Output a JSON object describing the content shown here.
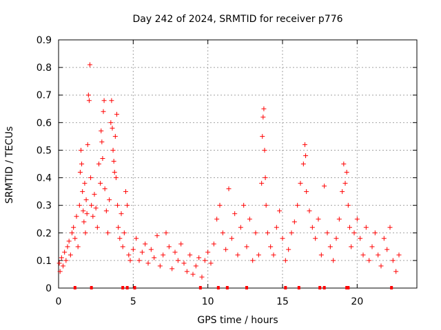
{
  "chart_data": {
    "type": "scatter",
    "title": "Day 242 of 2024, SRMTID for receiver p776",
    "xlabel": "GPS time / hours",
    "ylabel": "SRMTID / TECUs",
    "xlim": [
      0,
      24
    ],
    "ylim": [
      0,
      0.9
    ],
    "xticks": [
      0,
      5,
      10,
      15,
      20
    ],
    "xtick_labels": [
      "0",
      "5",
      "10",
      "15",
      "20"
    ],
    "yticks": [
      0,
      0.1,
      0.2,
      0.3,
      0.4,
      0.5,
      0.6,
      0.7,
      0.8,
      0.9
    ],
    "ytick_labels": [
      "0",
      "0.1",
      "0.2",
      "0.3",
      "0.4",
      "0.5",
      "0.6",
      "0.7",
      "0.8",
      "0.9"
    ],
    "grid": true,
    "marker": "+",
    "color": "#ff0000",
    "series": [
      {
        "name": "SRMTID",
        "points": [
          [
            0.05,
            0.09
          ],
          [
            0.1,
            0.06
          ],
          [
            0.2,
            0.11
          ],
          [
            0.3,
            0.08
          ],
          [
            0.4,
            0.13
          ],
          [
            0.5,
            0.1
          ],
          [
            0.6,
            0.15
          ],
          [
            0.7,
            0.17
          ],
          [
            0.8,
            0.12
          ],
          [
            0.9,
            0.2
          ],
          [
            1.0,
            0.22
          ],
          [
            1.1,
            0.18
          ],
          [
            1.2,
            0.26
          ],
          [
            1.3,
            0.15
          ],
          [
            1.4,
            0.3
          ],
          [
            1.45,
            0.42
          ],
          [
            1.5,
            0.5
          ],
          [
            1.55,
            0.45
          ],
          [
            1.6,
            0.35
          ],
          [
            1.65,
            0.28
          ],
          [
            1.7,
            0.24
          ],
          [
            1.75,
            0.38
          ],
          [
            1.8,
            0.2
          ],
          [
            1.85,
            0.32
          ],
          [
            1.9,
            0.27
          ],
          [
            1.95,
            0.52
          ],
          [
            2.0,
            0.7
          ],
          [
            2.05,
            0.68
          ],
          [
            2.1,
            0.81
          ],
          [
            2.15,
            0.4
          ],
          [
            2.2,
            0.3
          ],
          [
            2.3,
            0.26
          ],
          [
            2.4,
            0.34
          ],
          [
            2.5,
            0.29
          ],
          [
            2.6,
            0.22
          ],
          [
            2.7,
            0.45
          ],
          [
            2.8,
            0.38
          ],
          [
            2.85,
            0.57
          ],
          [
            2.9,
            0.53
          ],
          [
            2.95,
            0.47
          ],
          [
            3.0,
            0.64
          ],
          [
            3.05,
            0.68
          ],
          [
            3.1,
            0.36
          ],
          [
            3.2,
            0.28
          ],
          [
            3.3,
            0.2
          ],
          [
            3.4,
            0.32
          ],
          [
            3.5,
            0.6
          ],
          [
            3.55,
            0.68
          ],
          [
            3.6,
            0.58
          ],
          [
            3.65,
            0.5
          ],
          [
            3.7,
            0.46
          ],
          [
            3.75,
            0.42
          ],
          [
            3.8,
            0.55
          ],
          [
            3.85,
            0.4
          ],
          [
            3.9,
            0.63
          ],
          [
            3.95,
            0.3
          ],
          [
            4.0,
            0.22
          ],
          [
            4.1,
            0.18
          ],
          [
            4.2,
            0.27
          ],
          [
            4.3,
            0.15
          ],
          [
            4.4,
            0.2
          ],
          [
            4.5,
            0.35
          ],
          [
            4.6,
            0.3
          ],
          [
            4.7,
            0.12
          ],
          [
            4.8,
            0.1
          ],
          [
            5.0,
            0.14
          ],
          [
            5.2,
            0.18
          ],
          [
            5.4,
            0.1
          ],
          [
            5.6,
            0.13
          ],
          [
            5.8,
            0.16
          ],
          [
            6.0,
            0.09
          ],
          [
            6.2,
            0.14
          ],
          [
            6.4,
            0.11
          ],
          [
            6.6,
            0.19
          ],
          [
            6.8,
            0.08
          ],
          [
            7.0,
            0.12
          ],
          [
            7.2,
            0.2
          ],
          [
            7.4,
            0.15
          ],
          [
            7.6,
            0.07
          ],
          [
            7.8,
            0.13
          ],
          [
            8.0,
            0.1
          ],
          [
            8.2,
            0.16
          ],
          [
            8.4,
            0.09
          ],
          [
            8.6,
            0.06
          ],
          [
            8.8,
            0.12
          ],
          [
            9.0,
            0.05
          ],
          [
            9.2,
            0.08
          ],
          [
            9.4,
            0.11
          ],
          [
            9.6,
            0.04
          ],
          [
            9.8,
            0.1
          ],
          [
            10.0,
            0.13
          ],
          [
            10.2,
            0.09
          ],
          [
            10.4,
            0.16
          ],
          [
            10.6,
            0.25
          ],
          [
            10.8,
            0.3
          ],
          [
            11.0,
            0.2
          ],
          [
            11.2,
            0.14
          ],
          [
            11.4,
            0.36
          ],
          [
            11.6,
            0.18
          ],
          [
            11.8,
            0.27
          ],
          [
            12.0,
            0.12
          ],
          [
            12.2,
            0.22
          ],
          [
            12.4,
            0.3
          ],
          [
            12.6,
            0.15
          ],
          [
            12.8,
            0.25
          ],
          [
            13.0,
            0.1
          ],
          [
            13.2,
            0.2
          ],
          [
            13.4,
            0.12
          ],
          [
            13.6,
            0.38
          ],
          [
            13.65,
            0.55
          ],
          [
            13.7,
            0.62
          ],
          [
            13.75,
            0.65
          ],
          [
            13.8,
            0.5
          ],
          [
            13.85,
            0.4
          ],
          [
            13.9,
            0.3
          ],
          [
            14.0,
            0.2
          ],
          [
            14.2,
            0.15
          ],
          [
            14.4,
            0.12
          ],
          [
            14.6,
            0.22
          ],
          [
            14.8,
            0.28
          ],
          [
            15.0,
            0.18
          ],
          [
            15.2,
            0.1
          ],
          [
            15.4,
            0.14
          ],
          [
            15.6,
            0.2
          ],
          [
            15.8,
            0.24
          ],
          [
            16.0,
            0.3
          ],
          [
            16.2,
            0.38
          ],
          [
            16.4,
            0.45
          ],
          [
            16.5,
            0.52
          ],
          [
            16.55,
            0.48
          ],
          [
            16.6,
            0.35
          ],
          [
            16.8,
            0.28
          ],
          [
            17.0,
            0.22
          ],
          [
            17.2,
            0.18
          ],
          [
            17.4,
            0.25
          ],
          [
            17.6,
            0.12
          ],
          [
            17.8,
            0.37
          ],
          [
            18.0,
            0.2
          ],
          [
            18.2,
            0.15
          ],
          [
            18.4,
            0.1
          ],
          [
            18.6,
            0.18
          ],
          [
            18.8,
            0.25
          ],
          [
            19.0,
            0.35
          ],
          [
            19.1,
            0.45
          ],
          [
            19.2,
            0.38
          ],
          [
            19.3,
            0.42
          ],
          [
            19.4,
            0.3
          ],
          [
            19.5,
            0.22
          ],
          [
            19.6,
            0.15
          ],
          [
            19.8,
            0.2
          ],
          [
            20.0,
            0.25
          ],
          [
            20.2,
            0.18
          ],
          [
            20.4,
            0.12
          ],
          [
            20.6,
            0.22
          ],
          [
            20.8,
            0.1
          ],
          [
            21.0,
            0.15
          ],
          [
            21.2,
            0.2
          ],
          [
            21.4,
            0.12
          ],
          [
            21.6,
            0.08
          ],
          [
            21.8,
            0.18
          ],
          [
            22.0,
            0.14
          ],
          [
            22.2,
            0.22
          ],
          [
            22.4,
            0.1
          ],
          [
            22.6,
            0.06
          ],
          [
            22.8,
            0.12
          ]
        ]
      }
    ],
    "baseline_markers_x": [
      1.1,
      2.2,
      4.3,
      4.6,
      5.1,
      9.5,
      10.7,
      11.3,
      12.6,
      15.2,
      16.1,
      17.5,
      17.8,
      19.3,
      19.4,
      22.3
    ]
  }
}
